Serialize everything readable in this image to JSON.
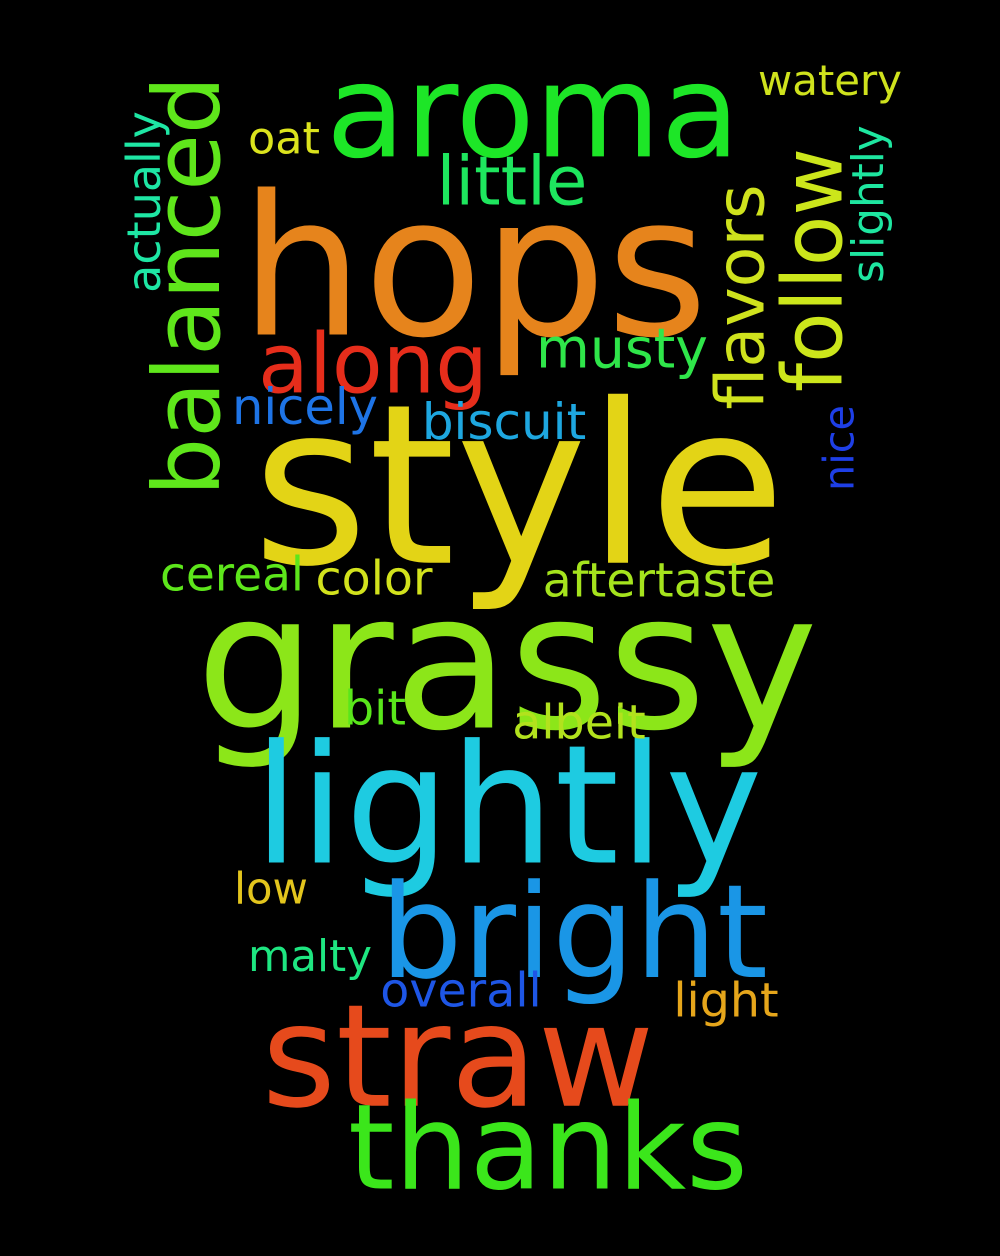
{
  "words": [
    {
      "id": "style",
      "text": "style",
      "color": "#e3d416",
      "weight": 1.0,
      "rotation": "horizontal"
    },
    {
      "id": "hops",
      "text": "hops",
      "color": "#e6841c",
      "weight": 0.93,
      "rotation": "horizontal"
    },
    {
      "id": "grassy",
      "text": "grassy",
      "color": "#8ce619",
      "weight": 0.85,
      "rotation": "horizontal"
    },
    {
      "id": "lightly",
      "text": "lightly",
      "color": "#1ecbe1",
      "weight": 0.78,
      "rotation": "horizontal"
    },
    {
      "id": "aroma",
      "text": "aroma",
      "color": "#1de627",
      "weight": 0.7,
      "rotation": "horizontal"
    },
    {
      "id": "straw",
      "text": "straw",
      "color": "#e64a1c",
      "weight": 0.68,
      "rotation": "horizontal"
    },
    {
      "id": "bright",
      "text": "bright",
      "color": "#1a96e6",
      "weight": 0.65,
      "rotation": "horizontal"
    },
    {
      "id": "balanced",
      "text": "balanced",
      "color": "#5fe61b",
      "weight": 0.52,
      "rotation": "vertical"
    },
    {
      "id": "follow",
      "text": "follow",
      "color": "#cce61b",
      "weight": 0.5,
      "rotation": "vertical"
    },
    {
      "id": "thanks",
      "text": "thanks",
      "color": "#3be61b",
      "weight": 0.55,
      "rotation": "horizontal"
    },
    {
      "id": "along",
      "text": "along",
      "color": "#e62d1b",
      "weight": 0.47,
      "rotation": "horizontal"
    },
    {
      "id": "flavors",
      "text": "flavors",
      "color": "#cfe21d",
      "weight": 0.36,
      "rotation": "vertical"
    },
    {
      "id": "musty",
      "text": "musty",
      "color": "#2fe64a",
      "weight": 0.33,
      "rotation": "horizontal"
    },
    {
      "id": "little",
      "text": "little",
      "color": "#1ee65e",
      "weight": 0.33,
      "rotation": "horizontal"
    },
    {
      "id": "biscuit",
      "text": "biscuit",
      "color": "#1ea7e0",
      "weight": 0.22,
      "rotation": "horizontal"
    },
    {
      "id": "nicely",
      "text": "nicely",
      "color": "#1e74e6",
      "weight": 0.22,
      "rotation": "horizontal"
    },
    {
      "id": "aftertaste",
      "text": "aftertaste",
      "color": "#a5e31d",
      "weight": 0.22,
      "rotation": "horizontal"
    },
    {
      "id": "color",
      "text": "color",
      "color": "#d2e21d",
      "weight": 0.22,
      "rotation": "horizontal"
    },
    {
      "id": "cereal",
      "text": "cereal",
      "color": "#5de61b",
      "weight": 0.22,
      "rotation": "horizontal"
    },
    {
      "id": "albeit",
      "text": "albeit",
      "color": "#b2e21d",
      "weight": 0.22,
      "rotation": "horizontal"
    },
    {
      "id": "bit",
      "text": "bit",
      "color": "#59e61b",
      "weight": 0.22,
      "rotation": "horizontal"
    },
    {
      "id": "overall",
      "text": "overall",
      "color": "#1e56e6",
      "weight": 0.22,
      "rotation": "horizontal"
    },
    {
      "id": "light",
      "text": "light",
      "color": "#e6a61b",
      "weight": 0.22,
      "rotation": "horizontal"
    },
    {
      "id": "malty",
      "text": "malty",
      "color": "#1ee681",
      "weight": 0.22,
      "rotation": "horizontal"
    },
    {
      "id": "low",
      "text": "low",
      "color": "#e3c51d",
      "weight": 0.22,
      "rotation": "horizontal"
    },
    {
      "id": "watery",
      "text": "watery",
      "color": "#cfe21d",
      "weight": 0.22,
      "rotation": "horizontal"
    },
    {
      "id": "oat",
      "text": "oat",
      "color": "#dbe31d",
      "weight": 0.22,
      "rotation": "horizontal"
    },
    {
      "id": "actually",
      "text": "actually",
      "color": "#1ee6a4",
      "weight": 0.2,
      "rotation": "vertical"
    },
    {
      "id": "slightly",
      "text": "slightly",
      "color": "#1ee6a0",
      "weight": 0.2,
      "rotation": "vertical"
    },
    {
      "id": "nice",
      "text": "nice",
      "color": "#1e3fe6",
      "weight": 0.2,
      "rotation": "vertical"
    }
  ]
}
